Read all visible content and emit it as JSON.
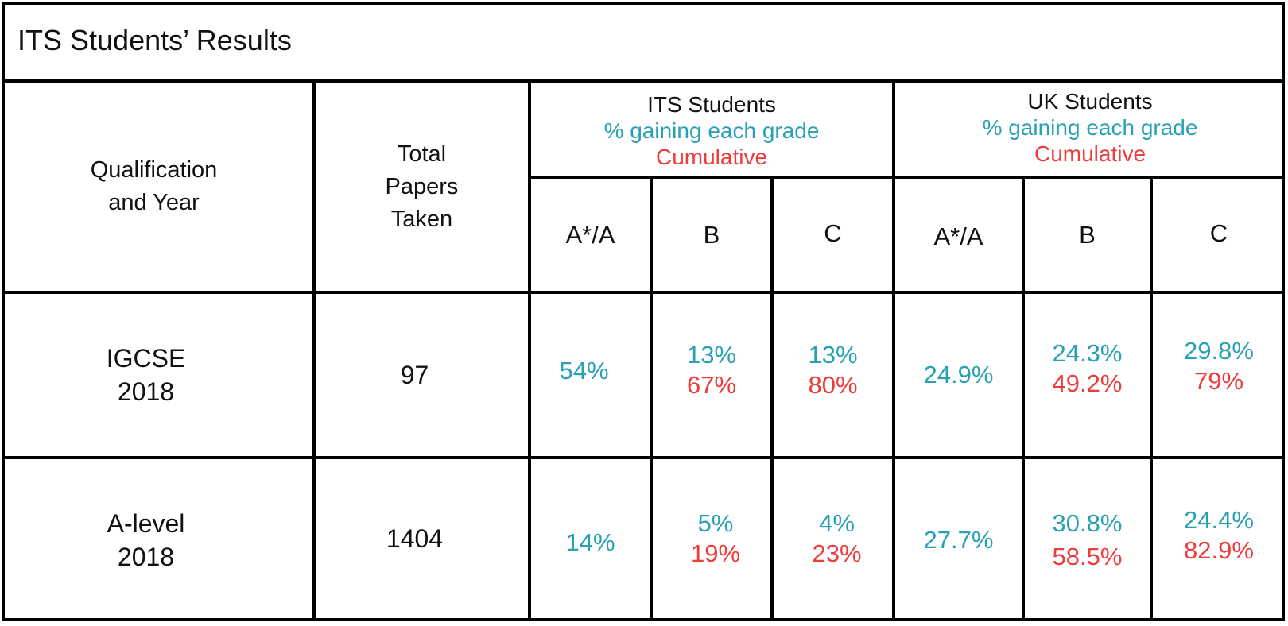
{
  "title": "ITS Students’ Results",
  "colors": {
    "teal": "#2aa1b3",
    "red": "#ee3c3c"
  },
  "headers": {
    "qualification": [
      "Qualification",
      "and Year"
    ],
    "total": [
      "Total",
      "Papers",
      "Taken"
    ],
    "its": {
      "name": "ITS Students",
      "sub": "% gaining each grade",
      "cumulative": "Cumulative"
    },
    "uk": {
      "name": "UK Students",
      "sub": "% gaining each grade",
      "cumulative": "Cumulative"
    },
    "grades": [
      "A*/A",
      "B",
      "C"
    ]
  },
  "rows": [
    {
      "qualification": "IGCSE",
      "year": "2018",
      "total": "97",
      "its": [
        {
          "pct": "54%",
          "cum": ""
        },
        {
          "pct": "13%",
          "cum": "67%"
        },
        {
          "pct": "13%",
          "cum": "80%"
        }
      ],
      "uk": [
        {
          "pct": "24.9%",
          "cum": ""
        },
        {
          "pct": "24.3%",
          "cum": "49.2%"
        },
        {
          "pct": "29.8%",
          "cum": "79%"
        }
      ]
    },
    {
      "qualification": "A-level",
      "year": "2018",
      "total": "1404",
      "its": [
        {
          "pct": "14%",
          "cum": ""
        },
        {
          "pct": "5%",
          "cum": "19%"
        },
        {
          "pct": "4%",
          "cum": "23%"
        }
      ],
      "uk": [
        {
          "pct": "27.7%",
          "cum": ""
        },
        {
          "pct": "30.8%",
          "cum": "58.5%"
        },
        {
          "pct": "24.4%",
          "cum": "82.9%"
        }
      ]
    }
  ]
}
